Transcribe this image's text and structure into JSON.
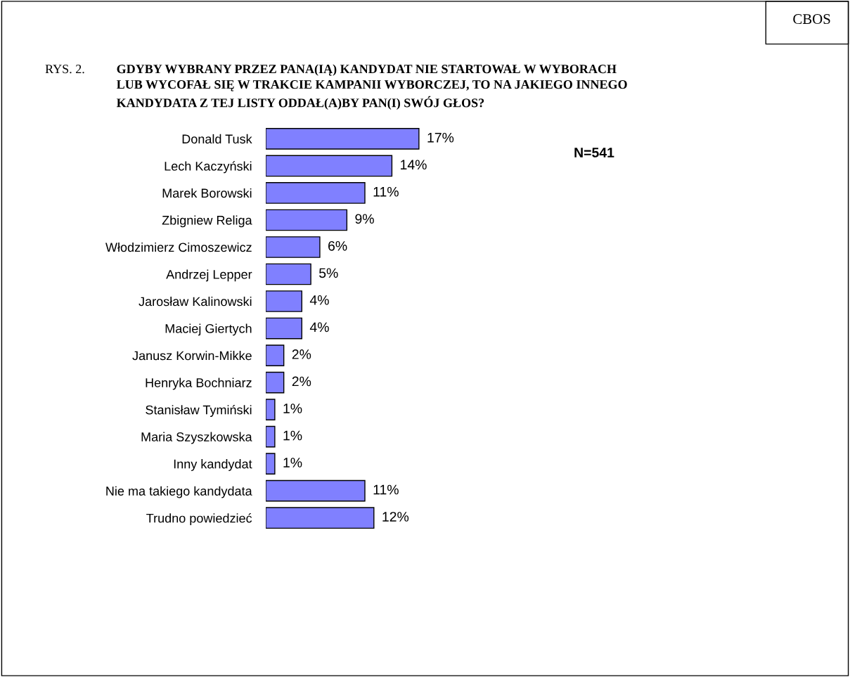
{
  "chart_data": {
    "type": "bar",
    "orientation": "horizontal",
    "title": "GDYBY WYBRANY PRZEZ PANA(IĄ) KANDYDAT NIE STARTOWAŁ W WYBORACH\nLUB WYCOFAŁ SIĘ W TRAKCIE KAMPANII WYBORCZEJ, TO NA JAKIEGO INNEGO\nKANDYDATA Z TEJ LISTY ODDAŁ(A)BY PAN(I) SWÓJ GŁOS?",
    "annotations": [
      "CBOS",
      "RYS. 2.",
      "N=541"
    ],
    "categories": [
      "Donald Tusk",
      "Lech Kaczyński",
      "Marek Borowski",
      "Zbigniew Religa",
      "Włodzimierz Cimoszewicz",
      "Andrzej Lepper",
      "Jarosław Kalinowski",
      "Maciej Giertych",
      "Janusz Korwin-Mikke",
      "Henryka Bochniarz",
      "Stanisław Tymiński",
      "Maria Szyszkowska",
      "Inny kandydat",
      "Nie ma takiego kandydata",
      "Trudno powiedzieć"
    ],
    "values": [
      17,
      14,
      11,
      9,
      6,
      5,
      4,
      4,
      2,
      2,
      1,
      1,
      1,
      11,
      12
    ],
    "value_labels": [
      "17%",
      "14%",
      "11%",
      "9%",
      "6%",
      "5%",
      "4%",
      "4%",
      "2%",
      "2%",
      "1%",
      "1%",
      "1%",
      "11%",
      "12%"
    ],
    "color": "#8080ff",
    "tick_labels": "y",
    "grid": false
  }
}
